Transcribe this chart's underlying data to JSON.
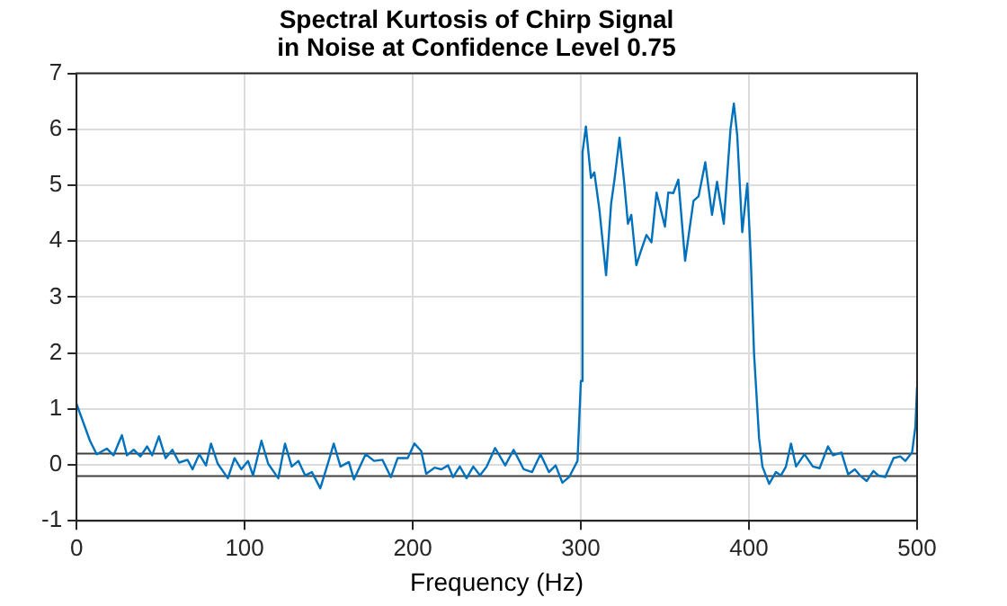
{
  "chart_data": {
    "type": "line",
    "title": [
      "Spectral Kurtosis of Chirp Signal",
      "in Noise at Confidence Level 0.75"
    ],
    "xlabel": "Frequency (Hz)",
    "xlim": [
      0,
      500
    ],
    "xticks": [
      0,
      100,
      200,
      300,
      400,
      500
    ],
    "ylim": [
      -1,
      7
    ],
    "yticks": [
      -1,
      0,
      1,
      2,
      3,
      4,
      5,
      6,
      7
    ],
    "grid": true,
    "legend": false,
    "marker": "none",
    "line_style": "solid",
    "ref_lines": [
      {
        "axis": "y",
        "value": 0.2,
        "color": "#404040"
      },
      {
        "axis": "y",
        "value": -0.2,
        "color": "#404040"
      }
    ],
    "series": [
      {
        "color": "#0072bd",
        "x": [
          0,
          8,
          12,
          18,
          22,
          27,
          30,
          34,
          38,
          42,
          45,
          49,
          53,
          57,
          61,
          66,
          69,
          73,
          77,
          80,
          84,
          90,
          94,
          98,
          102,
          105,
          110,
          114,
          120,
          124,
          128,
          132,
          136,
          140,
          145,
          150,
          153,
          157,
          162,
          165,
          172,
          177,
          182,
          187,
          191,
          197,
          201,
          205,
          208,
          213,
          217,
          221,
          224,
          228,
          232,
          236,
          240,
          244,
          249,
          255,
          260,
          266,
          271,
          276,
          281,
          285,
          289,
          293,
          298,
          300,
          301,
          303,
          306,
          308,
          311,
          315,
          318,
          320,
          323,
          326,
          328,
          330,
          333,
          336,
          339,
          342,
          345,
          350,
          352,
          355,
          358,
          362,
          367,
          370,
          374,
          378,
          381,
          385,
          389,
          391,
          393,
          396,
          399,
          401,
          403,
          406,
          408,
          412,
          416,
          419,
          422,
          425,
          428,
          433,
          438,
          442,
          447,
          450,
          455,
          459,
          463,
          466,
          470,
          474,
          477,
          481,
          486,
          490,
          493,
          497,
          499,
          500
        ],
        "values": [
          1.09,
          0.43,
          0.19,
          0.29,
          0.17,
          0.53,
          0.17,
          0.27,
          0.15,
          0.33,
          0.17,
          0.51,
          0.12,
          0.27,
          0.04,
          0.09,
          -0.08,
          0.19,
          -0.01,
          0.38,
          0.02,
          -0.24,
          0.12,
          -0.08,
          0.07,
          -0.19,
          0.43,
          0.02,
          -0.24,
          0.38,
          -0.03,
          0.07,
          -0.19,
          -0.13,
          -0.42,
          0.07,
          0.38,
          -0.03,
          0.05,
          -0.26,
          0.19,
          0.07,
          0.09,
          -0.22,
          0.12,
          0.12,
          0.38,
          0.25,
          -0.16,
          -0.05,
          -0.08,
          -0.01,
          -0.22,
          -0.03,
          -0.24,
          -0.03,
          -0.19,
          -0.03,
          0.3,
          -0.01,
          0.27,
          -0.08,
          -0.13,
          0.19,
          -0.13,
          -0.01,
          -0.32,
          -0.22,
          0.07,
          1.5,
          5.59,
          6.05,
          5.13,
          5.23,
          4.57,
          3.39,
          4.67,
          5.1,
          5.85,
          4.98,
          4.31,
          4.47,
          3.57,
          3.85,
          4.11,
          3.98,
          4.87,
          4.26,
          4.87,
          4.86,
          5.1,
          3.65,
          4.72,
          4.8,
          5.41,
          4.47,
          5.06,
          4.31,
          6.0,
          6.46,
          5.9,
          4.16,
          5.03,
          3.75,
          2.0,
          0.48,
          -0.03,
          -0.34,
          -0.13,
          -0.19,
          -0.03,
          0.38,
          -0.03,
          0.19,
          -0.03,
          -0.06,
          0.33,
          0.17,
          0.22,
          -0.17,
          -0.08,
          -0.19,
          -0.29,
          -0.11,
          -0.19,
          -0.22,
          0.12,
          0.15,
          0.07,
          0.22,
          0.68,
          1.4
        ]
      }
    ]
  }
}
